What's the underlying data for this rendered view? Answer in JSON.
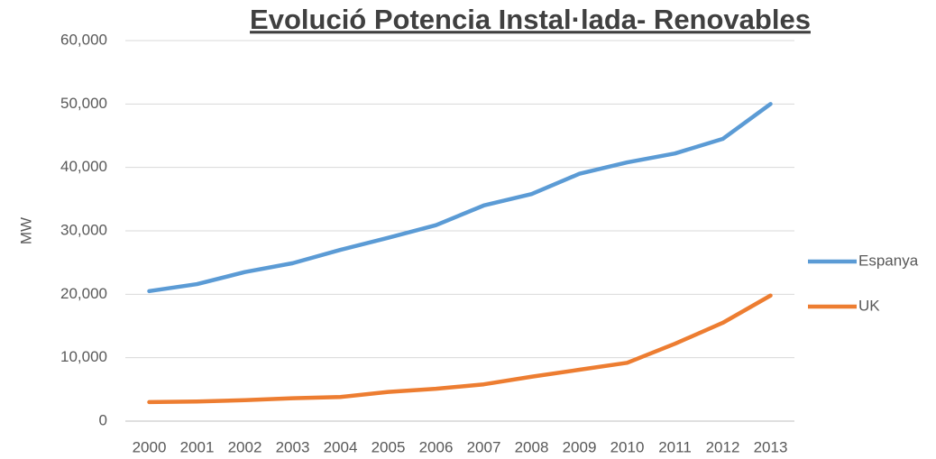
{
  "chart_data": {
    "type": "line",
    "title": "Evolució Potencia Instal·lada- Renovables",
    "y_label": "MW",
    "categories": [
      "2000",
      "2001",
      "2002",
      "2003",
      "2004",
      "2005",
      "2006",
      "2007",
      "2008",
      "2009",
      "2010",
      "2011",
      "2012",
      "2013"
    ],
    "series": [
      {
        "name": "Espanya",
        "color": "#5b9bd5",
        "values": [
          20500,
          21600,
          23500,
          24900,
          27000,
          28900,
          30900,
          34000,
          35800,
          39000,
          40800,
          42200,
          44500,
          50000
        ]
      },
      {
        "name": "UK",
        "color": "#ed7d31",
        "values": [
          3000,
          3100,
          3300,
          3600,
          3800,
          4600,
          5100,
          5800,
          7000,
          8100,
          9200,
          12200,
          15500,
          19800
        ]
      }
    ],
    "ylim": [
      0,
      60000
    ],
    "yticks": [
      0,
      {
        "value": 10000,
        "label": "10,000"
      },
      {
        "value": 20000,
        "label": "20,000"
      },
      {
        "value": 30000,
        "label": "30,000"
      },
      {
        "value": 40000,
        "label": "40,000"
      },
      {
        "value": 50000,
        "label": "50,000"
      },
      {
        "value": 60000,
        "label": "60,000"
      }
    ],
    "grid": true,
    "legend": "right"
  }
}
